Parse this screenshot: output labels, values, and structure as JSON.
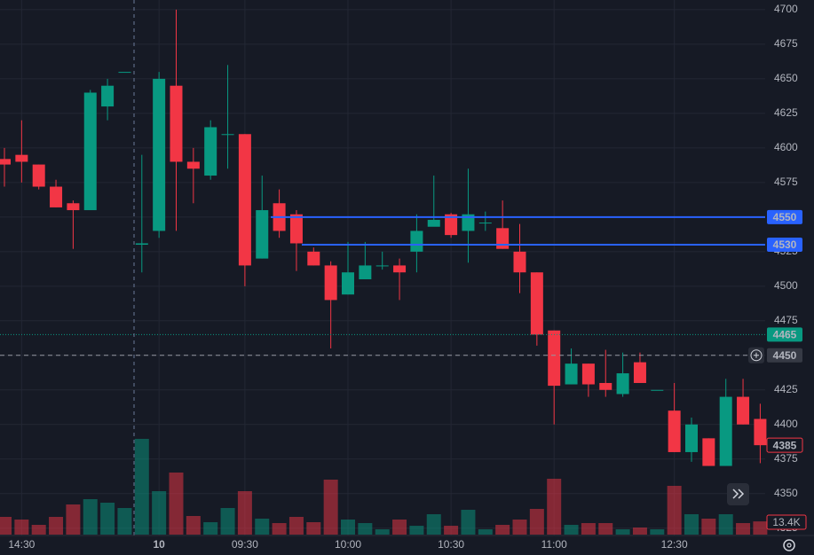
{
  "chart_data": {
    "type": "candlestick",
    "up_color": "#089981",
    "down_color": "#f23645",
    "categories": [
      null,
      "14:30",
      null,
      null,
      null,
      null,
      null,
      null,
      null,
      "10",
      null,
      null,
      null,
      null,
      "09:30",
      null,
      null,
      null,
      null,
      null,
      "10:00",
      null,
      null,
      null,
      null,
      null,
      "10:30",
      null,
      null,
      null,
      null,
      null,
      "11:00",
      null,
      null,
      null,
      null,
      null,
      null,
      "12:30",
      null,
      null,
      null,
      null,
      null
    ],
    "open": [
      4592,
      4595,
      4588,
      4572,
      4560,
      4555,
      4630,
      4655,
      4530,
      4540,
      4645,
      4590,
      4580,
      4610,
      4610,
      4520,
      4560,
      4552,
      4525,
      4515,
      4494,
      4505,
      4515,
      4515,
      4525,
      4543,
      4552,
      4540,
      4546,
      4542,
      4525,
      4510,
      4468,
      4429,
      4444,
      4430,
      4422,
      4445,
      4425,
      4410,
      4380,
      4390,
      4370,
      4420,
      4404
    ],
    "high": [
      4600,
      4620,
      4588,
      4577,
      4562,
      4642,
      4650,
      4655,
      4595,
      4655,
      4700,
      4600,
      4620,
      4660,
      4610,
      4580,
      4570,
      4555,
      4528,
      4518,
      4532,
      4532,
      4525,
      4520,
      4552,
      4580,
      4553,
      4585,
      4554,
      4562,
      4545,
      4510,
      4468,
      4455,
      4444,
      4454,
      4452,
      4452,
      4425,
      4430,
      4405,
      4390,
      4433,
      4433,
      4415
    ],
    "low": [
      4572,
      4575,
      4570,
      4557,
      4527,
      4555,
      4620,
      4655,
      4510,
      4535,
      4540,
      4560,
      4577,
      4585,
      4500,
      4520,
      4535,
      4511,
      4515,
      4455,
      4494,
      4505,
      4512,
      4490,
      4510,
      4545,
      4535,
      4517,
      4540,
      4527,
      4495,
      4457,
      4400,
      4429,
      4420,
      4420,
      4420,
      4430,
      4425,
      4380,
      4373,
      4370,
      4370,
      4400,
      4372
    ],
    "close": [
      4588,
      4590,
      4572,
      4557,
      4555,
      4640,
      4645,
      4655,
      4531,
      4650,
      4590,
      4585,
      4615,
      4610,
      4515,
      4555,
      4540,
      4531,
      4515,
      4490,
      4510,
      4515,
      4515,
      4510,
      4540,
      4548,
      4537,
      4552,
      4546,
      4527,
      4510,
      4465,
      4428,
      4444,
      4429,
      4425,
      4437,
      4430,
      4425,
      4380,
      4400,
      4370,
      4420,
      4400,
      4385
    ],
    "volume": [
      18,
      15.3,
      9.9,
      18,
      30.6,
      36,
      32.4,
      27,
      97.2,
      44.1,
      63,
      18.9,
      12.6,
      27,
      44.1,
      16.2,
      11.7,
      18,
      12.6,
      55.8,
      15.3,
      11.7,
      5.4,
      15.3,
      9,
      20.7,
      9,
      25.2,
      5.4,
      9.9,
      15.3,
      26.1,
      56.7,
      9.9,
      11.7,
      11.7,
      5.4,
      7.2,
      5.4,
      49.5,
      20.7,
      16.2,
      20.7,
      11.7,
      13.4
    ],
    "volume_value_label": "13.4K",
    "ylim": [
      4312,
      4707
    ],
    "yticks": [
      4325,
      4350,
      4375,
      4400,
      4425,
      4450,
      4475,
      4500,
      4525,
      4550,
      4575,
      4600,
      4625,
      4650,
      4675,
      4700
    ],
    "grid": true,
    "levels": [
      {
        "price": 4550,
        "color": "#2962ff"
      },
      {
        "price": 4530,
        "color": "#2962ff"
      }
    ],
    "current_price": 4465,
    "current_price_color": "#089981",
    "crosshair_price": 4450,
    "last_price": 4385
  }
}
